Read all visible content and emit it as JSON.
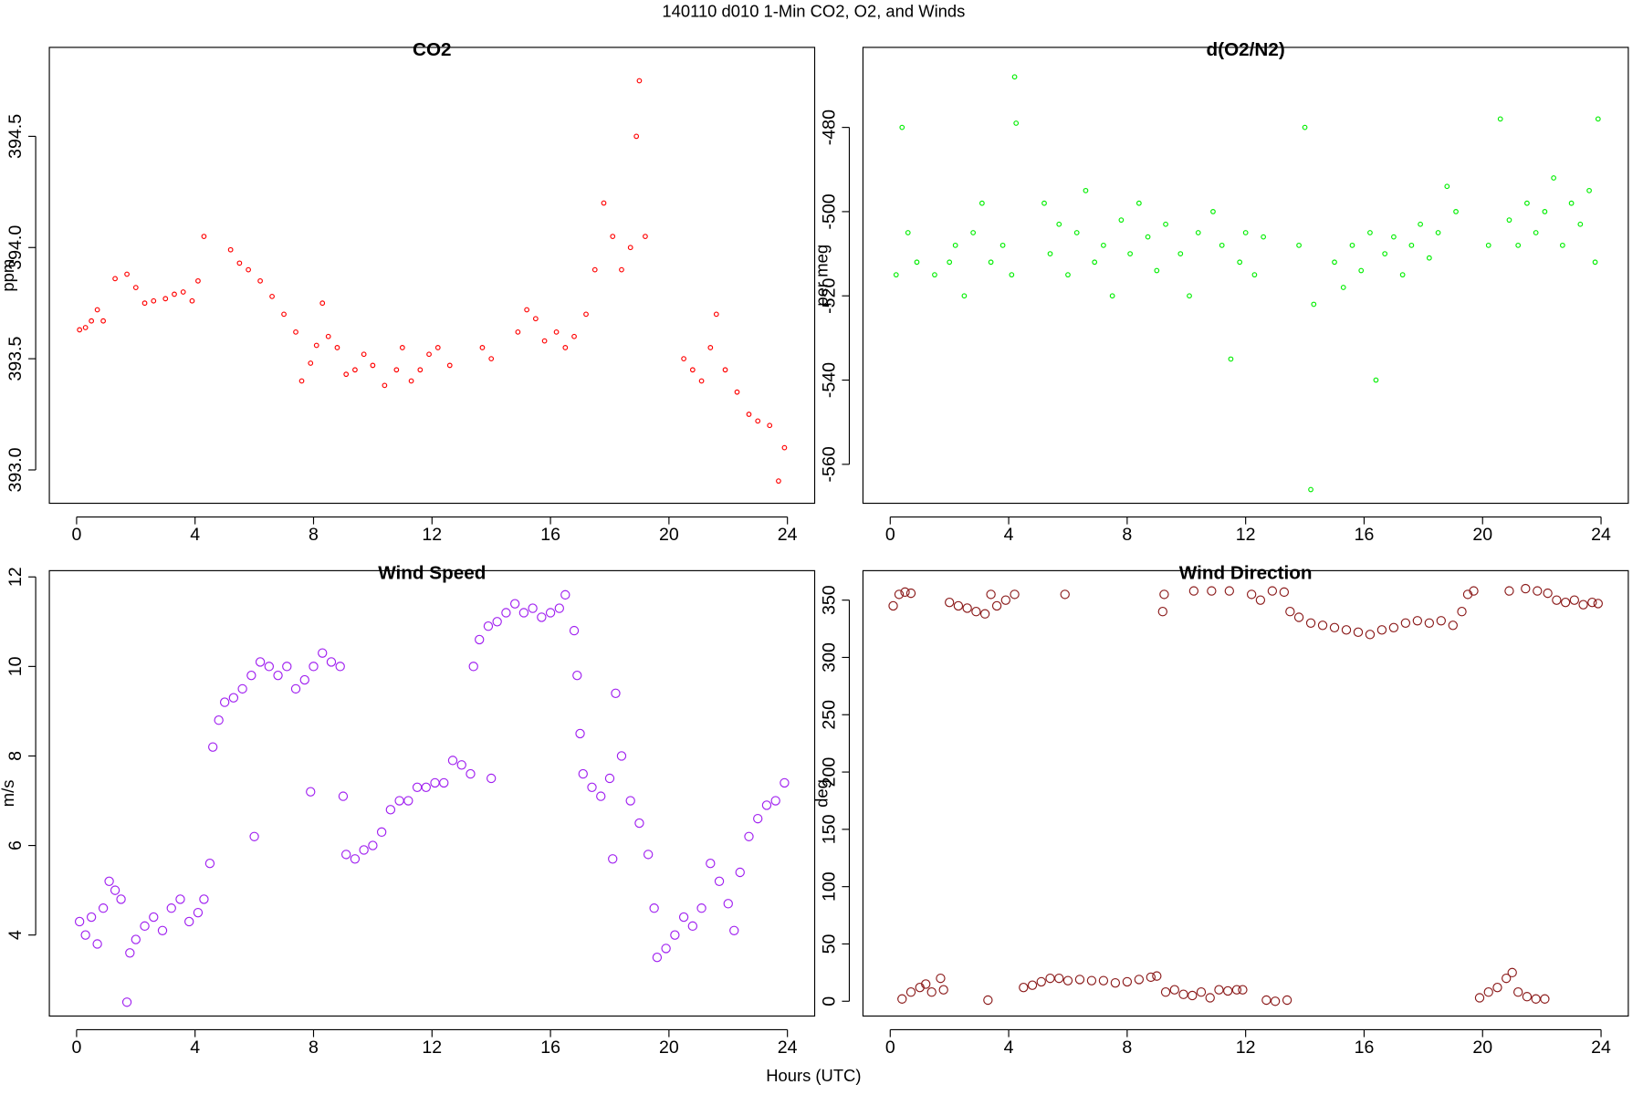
{
  "title": "140110   d010   1-Min CO2, O2, and Winds",
  "x_label": "Hours (UTC)",
  "chart_data": [
    {
      "type": "scatter",
      "title": "CO2",
      "y_label": "ppm",
      "color": "#ff0000",
      "marker_size": 2,
      "xlim": [
        -0.92,
        24.92
      ],
      "xticks": [
        0,
        4,
        8,
        12,
        16,
        20,
        24
      ],
      "ylim": [
        392.85,
        394.9
      ],
      "yticks": [
        {
          "value": 393,
          "label": "393.0"
        },
        393.5,
        {
          "value": 394,
          "label": "394.0"
        },
        394.5
      ],
      "x": [
        0.1,
        0.3,
        0.5,
        0.7,
        0.9,
        1.3,
        1.7,
        2.0,
        2.3,
        2.6,
        3.0,
        3.3,
        3.6,
        3.9,
        4.1,
        4.3,
        5.2,
        5.5,
        5.8,
        6.2,
        6.6,
        7.0,
        7.4,
        7.6,
        7.9,
        8.1,
        8.3,
        8.5,
        8.8,
        9.1,
        9.4,
        9.7,
        10.0,
        10.4,
        10.8,
        11.0,
        11.3,
        11.6,
        11.9,
        12.2,
        12.6,
        13.7,
        14.0,
        14.9,
        15.2,
        15.5,
        15.8,
        16.2,
        16.5,
        16.8,
        17.2,
        17.5,
        17.8,
        18.1,
        18.4,
        18.7,
        18.9,
        19.0,
        19.2,
        20.5,
        20.8,
        21.1,
        21.4,
        21.6,
        21.9,
        22.3,
        22.7,
        23.0,
        23.4,
        23.7,
        23.9
      ],
      "values": [
        393.63,
        393.64,
        393.67,
        393.72,
        393.67,
        393.86,
        393.88,
        393.82,
        393.75,
        393.76,
        393.77,
        393.79,
        393.8,
        393.76,
        393.85,
        394.05,
        393.99,
        393.93,
        393.9,
        393.85,
        393.78,
        393.7,
        393.62,
        393.4,
        393.48,
        393.56,
        393.75,
        393.6,
        393.55,
        393.43,
        393.45,
        393.52,
        393.47,
        393.38,
        393.45,
        393.55,
        393.4,
        393.45,
        393.52,
        393.55,
        393.47,
        393.55,
        393.5,
        393.62,
        393.72,
        393.68,
        393.58,
        393.62,
        393.55,
        393.6,
        393.7,
        393.9,
        394.2,
        394.05,
        393.9,
        394.0,
        394.5,
        394.75,
        394.05,
        393.5,
        393.45,
        393.4,
        393.55,
        393.7,
        393.45,
        393.35,
        393.25,
        393.22,
        393.2,
        392.95,
        393.1
      ]
    },
    {
      "type": "scatter",
      "title": "d(O2/N2)",
      "y_label": "per meg",
      "color": "#00ee00",
      "marker_size": 2,
      "xlim": [
        -0.92,
        24.92
      ],
      "xticks": [
        0,
        4,
        8,
        12,
        16,
        20,
        24
      ],
      "ylim": [
        -569.25,
        -461
      ],
      "yticks": [
        -560,
        -540,
        -520,
        -500,
        -480
      ],
      "x": [
        0.2,
        0.4,
        0.6,
        0.9,
        1.5,
        2.0,
        2.2,
        2.5,
        2.8,
        3.1,
        3.4,
        3.8,
        4.1,
        4.2,
        4.25,
        5.2,
        5.4,
        5.7,
        6.0,
        6.3,
        6.6,
        6.9,
        7.2,
        7.5,
        7.8,
        8.1,
        8.4,
        8.7,
        9.0,
        9.3,
        9.8,
        10.1,
        10.4,
        10.9,
        11.2,
        11.5,
        11.8,
        12.0,
        12.3,
        12.6,
        13.8,
        14.0,
        14.3,
        14.2,
        15.0,
        15.3,
        15.6,
        15.9,
        16.2,
        16.4,
        16.7,
        17.0,
        17.3,
        17.6,
        17.9,
        18.2,
        18.5,
        18.8,
        19.1,
        20.2,
        20.6,
        20.9,
        21.2,
        21.5,
        21.8,
        22.1,
        22.4,
        22.7,
        23.0,
        23.3,
        23.6,
        23.8,
        23.9
      ],
      "values": [
        -515,
        -480,
        -505,
        -512,
        -515,
        -512,
        -508,
        -520,
        -505,
        -498,
        -512,
        -508,
        -515,
        -468,
        -479,
        -498,
        -510,
        -503,
        -515,
        -505,
        -495,
        -512,
        -508,
        -520,
        -502,
        -510,
        -498,
        -506,
        -514,
        -503,
        -510,
        -520,
        -505,
        -500,
        -508,
        -535,
        -512,
        -505,
        -515,
        -506,
        -508,
        -480,
        -522,
        -566,
        -512,
        -518,
        -508,
        -514,
        -505,
        -540,
        -510,
        -506,
        -515,
        -508,
        -503,
        -511,
        -505,
        -494,
        -500,
        -508,
        -478,
        -502,
        -508,
        -498,
        -505,
        -500,
        -492,
        -508,
        -498,
        -503,
        -495,
        -512,
        -478
      ]
    },
    {
      "type": "scatter",
      "title": "Wind Speed",
      "y_label": "m/s",
      "color": "#a020f0",
      "marker_size": 4,
      "xlim": [
        -0.92,
        24.92
      ],
      "xticks": [
        0,
        4,
        8,
        12,
        16,
        20,
        24
      ],
      "ylim": [
        2.19,
        12.14
      ],
      "yticks": [
        4,
        6,
        8,
        10,
        12
      ],
      "x": [
        0.1,
        0.3,
        0.5,
        0.7,
        0.9,
        1.1,
        1.3,
        1.5,
        1.7,
        1.8,
        2.0,
        2.3,
        2.6,
        2.9,
        3.2,
        3.5,
        3.8,
        4.1,
        4.3,
        4.5,
        4.6,
        4.8,
        5.0,
        5.3,
        5.6,
        5.9,
        6.0,
        6.2,
        6.5,
        6.8,
        7.1,
        7.4,
        7.7,
        8.0,
        7.9,
        8.3,
        8.6,
        8.9,
        9.0,
        9.1,
        9.4,
        9.7,
        10.0,
        10.3,
        10.6,
        10.9,
        11.2,
        11.5,
        11.8,
        12.1,
        12.4,
        12.7,
        13.0,
        13.3,
        13.4,
        13.6,
        14.0,
        13.9,
        14.2,
        14.5,
        14.8,
        15.1,
        15.4,
        15.7,
        16.0,
        16.3,
        16.5,
        16.8,
        16.9,
        17.0,
        17.1,
        17.4,
        17.7,
        18.0,
        18.2,
        18.1,
        18.4,
        18.7,
        19.0,
        19.3,
        19.5,
        19.6,
        19.9,
        20.2,
        20.5,
        20.8,
        21.1,
        21.4,
        21.7,
        22.0,
        22.2,
        22.4,
        22.7,
        23.0,
        23.3,
        23.6,
        23.9
      ],
      "values": [
        4.3,
        4.0,
        4.4,
        3.8,
        4.6,
        5.2,
        5.0,
        4.8,
        2.5,
        3.6,
        3.9,
        4.2,
        4.4,
        4.1,
        4.6,
        4.8,
        4.3,
        4.5,
        4.8,
        5.6,
        8.2,
        8.8,
        9.2,
        9.3,
        9.5,
        9.8,
        6.2,
        10.1,
        10.0,
        9.8,
        10.0,
        9.5,
        9.7,
        10.0,
        7.2,
        10.3,
        10.1,
        10.0,
        7.1,
        5.8,
        5.7,
        5.9,
        6.0,
        6.3,
        6.8,
        7.0,
        7.0,
        7.3,
        7.3,
        7.4,
        7.4,
        7.9,
        7.8,
        7.6,
        10.0,
        10.6,
        7.5,
        10.9,
        11.0,
        11.2,
        11.4,
        11.2,
        11.3,
        11.1,
        11.2,
        11.3,
        11.6,
        10.8,
        9.8,
        8.5,
        7.6,
        7.3,
        7.1,
        7.5,
        9.4,
        5.7,
        8.0,
        7.0,
        6.5,
        5.8,
        4.6,
        3.5,
        3.7,
        4.0,
        4.4,
        4.2,
        4.6,
        5.6,
        5.2,
        4.7,
        4.1,
        5.4,
        6.2,
        6.6,
        6.9,
        7.0,
        7.4
      ]
    },
    {
      "type": "scatter",
      "title": "Wind Direction",
      "y_label": "deg",
      "color": "#8b1a1a",
      "marker_size": 4,
      "xlim": [
        -0.92,
        24.92
      ],
      "xticks": [
        0,
        4,
        8,
        12,
        16,
        20,
        24
      ],
      "ylim": [
        -12.9,
        375.7
      ],
      "yticks": [
        0,
        50,
        100,
        150,
        200,
        250,
        300,
        350
      ],
      "x": [
        0.1,
        0.3,
        0.5,
        0.7,
        0.4,
        0.7,
        1.0,
        1.2,
        1.4,
        1.7,
        1.8,
        2.0,
        2.3,
        2.6,
        2.9,
        3.2,
        3.4,
        3.3,
        3.6,
        3.9,
        4.2,
        4.5,
        4.8,
        5.1,
        5.4,
        5.7,
        6.0,
        5.9,
        6.4,
        6.8,
        7.2,
        7.6,
        8.0,
        8.4,
        8.8,
        9.0,
        9.2,
        9.25,
        9.3,
        9.6,
        9.9,
        10.2,
        10.5,
        10.8,
        10.25,
        10.85,
        11.1,
        11.4,
        11.7,
        11.9,
        11.45,
        12.2,
        12.5,
        12.7,
        13.0,
        13.4,
        12.9,
        13.3,
        13.5,
        13.8,
        14.2,
        14.6,
        15.0,
        15.4,
        15.8,
        16.2,
        16.6,
        17.0,
        17.4,
        17.8,
        18.2,
        18.6,
        19.0,
        19.3,
        19.5,
        19.7,
        19.9,
        20.2,
        20.5,
        20.8,
        21.0,
        21.2,
        21.5,
        21.8,
        22.1,
        20.9,
        21.45,
        21.85,
        22.2,
        22.5,
        22.8,
        23.1,
        23.4,
        23.7,
        23.9
      ],
      "values": [
        345,
        355,
        357,
        356,
        2,
        8,
        12,
        15,
        8,
        20,
        10,
        348,
        345,
        343,
        340,
        338,
        355,
        1,
        345,
        350,
        355,
        12,
        14,
        17,
        20,
        20,
        18,
        355,
        19,
        18,
        18,
        16,
        17,
        19,
        21,
        22,
        340,
        355,
        8,
        10,
        6,
        5,
        8,
        3,
        358,
        358,
        10,
        9,
        10,
        10,
        358,
        355,
        350,
        1,
        0,
        1,
        358,
        357,
        340,
        335,
        330,
        328,
        326,
        324,
        322,
        320,
        324,
        326,
        330,
        332,
        330,
        332,
        328,
        340,
        355,
        358,
        3,
        8,
        12,
        20,
        25,
        8,
        4,
        2,
        2,
        358,
        360,
        358,
        356,
        350,
        348,
        350,
        346,
        348,
        347
      ]
    }
  ]
}
